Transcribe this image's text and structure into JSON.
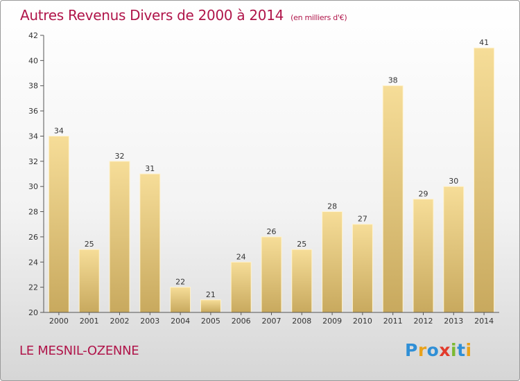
{
  "title": {
    "main": "Autres Revenus Divers de 2000 à 2014",
    "subtitle": "(en milliers d'€)"
  },
  "location": "LE MESNIL-OZENNE",
  "logo": {
    "text": "Proxiti",
    "letters": [
      {
        "char": "P",
        "color": "#2f8fd6"
      },
      {
        "char": "r",
        "color": "#e9a21b"
      },
      {
        "char": "o",
        "color": "#2f8fd6"
      },
      {
        "char": "x",
        "color": "#e23b2c"
      },
      {
        "char": "i",
        "color": "#7cb932"
      },
      {
        "char": "t",
        "color": "#2f8fd6"
      },
      {
        "char": "i",
        "color": "#e9a21b"
      }
    ]
  },
  "chart_data": {
    "type": "bar",
    "title": "Autres Revenus Divers de 2000 à 2014",
    "subtitle": "(en milliers d'€)",
    "xlabel": "",
    "ylabel": "",
    "categories": [
      "2000",
      "2001",
      "2002",
      "2003",
      "2004",
      "2005",
      "2006",
      "2007",
      "2008",
      "2009",
      "2010",
      "2011",
      "2012",
      "2013",
      "2014"
    ],
    "values": [
      34,
      25,
      32,
      31,
      22,
      21,
      24,
      26,
      25,
      28,
      27,
      38,
      29,
      30,
      41
    ],
    "ylim": [
      20,
      42
    ],
    "yticks": [
      20,
      22,
      24,
      26,
      28,
      30,
      32,
      34,
      36,
      38,
      40,
      42
    ],
    "grid": false,
    "data_labels": true,
    "colors": {
      "bar_top": "#f6dd98",
      "bar_bottom": "#c8a95e",
      "axis": "#555555",
      "title": "#b0154a"
    }
  }
}
